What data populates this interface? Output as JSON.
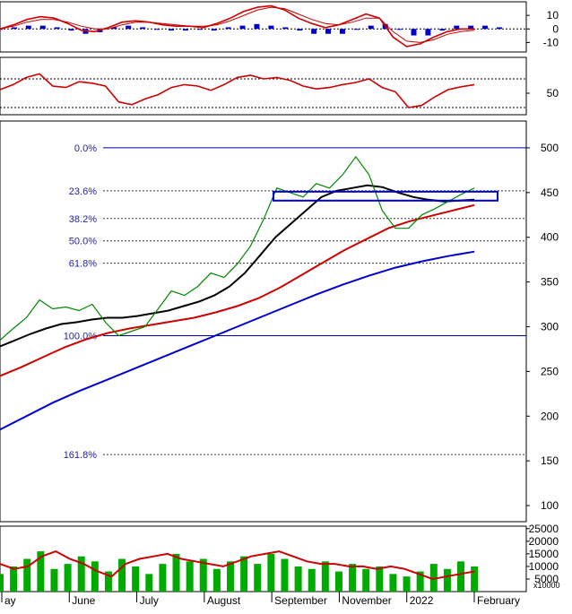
{
  "chart_data": [
    {
      "type": "line",
      "panel": "macd",
      "ylim": [
        -17,
        20
      ],
      "yticks": [
        10,
        0,
        -10
      ],
      "series": [
        {
          "values": [
            0,
            3,
            7,
            9,
            8,
            4,
            -1,
            -2,
            1,
            5,
            6,
            5,
            3,
            2,
            2,
            1,
            4,
            8,
            13,
            16,
            17,
            14,
            8,
            4,
            1,
            3,
            7,
            11,
            8,
            -6,
            -13,
            -11,
            -6,
            -2,
            0,
            0
          ],
          "color": "#cc0000"
        },
        {
          "values": [
            0,
            2,
            5,
            7,
            7,
            5,
            2,
            0,
            0,
            3,
            5,
            5,
            4,
            3,
            2,
            2,
            3,
            6,
            10,
            14,
            16,
            15,
            11,
            7,
            4,
            3,
            5,
            8,
            8,
            -2,
            -9,
            -10,
            -8,
            -4,
            -2,
            -1
          ],
          "color": "#cc0000"
        }
      ],
      "bars_color": "#0000cc"
    },
    {
      "type": "line",
      "panel": "rsi",
      "ylim": [
        20,
        100
      ],
      "yticks": [
        50
      ],
      "reference_lines": [
        70,
        30
      ],
      "series": [
        {
          "values": [
            55,
            62,
            72,
            77,
            60,
            58,
            66,
            64,
            60,
            38,
            34,
            42,
            48,
            58,
            62,
            60,
            54,
            62,
            72,
            75,
            70,
            72,
            68,
            60,
            56,
            58,
            62,
            65,
            70,
            58,
            52,
            30,
            33,
            45,
            55,
            59,
            62
          ],
          "color": "#cc0000"
        }
      ]
    },
    {
      "type": "line",
      "panel": "price",
      "ylim": [
        82,
        530
      ],
      "yticks": [
        500,
        450,
        400,
        350,
        300,
        250,
        200,
        150,
        100
      ],
      "fibonacci_levels": [
        {
          "label": "0.0%",
          "value": 500
        },
        {
          "label": "23.6%",
          "value": 452
        },
        {
          "label": "38.2%",
          "value": 421
        },
        {
          "label": "50.0%",
          "value": 396
        },
        {
          "label": "61.8%",
          "value": 371
        },
        {
          "label": "100.0%",
          "value": 290
        },
        {
          "label": "161.8%",
          "value": 157
        }
      ],
      "box": {
        "x0": 0.545,
        "x1": 1.0,
        "y0": 441,
        "y1": 451
      },
      "series": [
        {
          "values": [
            285,
            298,
            310,
            330,
            320,
            322,
            318,
            325,
            305,
            290,
            295,
            300,
            320,
            340,
            335,
            345,
            360,
            355,
            370,
            390,
            420,
            455,
            450,
            445,
            460,
            455,
            470,
            490,
            470,
            430,
            410,
            410,
            425,
            432,
            440,
            448,
            455
          ],
          "color": "#008800"
        },
        {
          "values": [
            278,
            285,
            292,
            298,
            303,
            305,
            308,
            310,
            310,
            312,
            315,
            318,
            323,
            328,
            335,
            345,
            360,
            380,
            400,
            415,
            430,
            445,
            452,
            455,
            458,
            456,
            450,
            445,
            442,
            440,
            441,
            442
          ],
          "color": "#000000"
        },
        {
          "values": [
            245,
            255,
            266,
            277,
            286,
            293,
            298,
            302,
            306,
            310,
            316,
            323,
            332,
            344,
            358,
            372,
            386,
            398,
            410,
            418,
            424,
            430,
            436
          ],
          "color": "#cc0000"
        },
        {
          "values": [
            185,
            200,
            215,
            228,
            240,
            252,
            264,
            276,
            288,
            300,
            312,
            324,
            336,
            347,
            357,
            366,
            373,
            379,
            384
          ],
          "color": "#0000cc"
        }
      ]
    },
    {
      "type": "bar",
      "panel": "volume",
      "ylim": [
        0,
        26000
      ],
      "yticks": [
        25000,
        20000,
        15000,
        10000,
        5000
      ],
      "unit_label": "x10000",
      "series": [
        {
          "values": [
            7000,
            10000,
            13000,
            16000,
            9000,
            11000,
            14000,
            12000,
            8000,
            13000,
            10000,
            7000,
            11000,
            15000,
            12000,
            13000,
            9000,
            12000,
            14000,
            11000,
            15000,
            13000,
            10000,
            9000,
            12000,
            8000,
            11000,
            9000,
            10000,
            7000,
            6000,
            8000,
            11000,
            9000,
            12000,
            10000
          ],
          "color": "#00aa00"
        },
        {
          "values": [
            11000,
            9000,
            10000,
            14000,
            16000,
            13000,
            11000,
            8000,
            6000,
            11000,
            13000,
            14000,
            15000,
            13000,
            12000,
            11000,
            10000,
            12000,
            14000,
            15000,
            16000,
            14000,
            12000,
            11000,
            11000,
            10000,
            10000,
            9000,
            10000,
            9000,
            7000,
            5000,
            6000,
            7000,
            8000
          ],
          "color": "#cc0000"
        }
      ],
      "xtick_labels": [
        "ay",
        "June",
        "July",
        "August",
        "September",
        "November",
        "2022",
        "February"
      ]
    }
  ]
}
